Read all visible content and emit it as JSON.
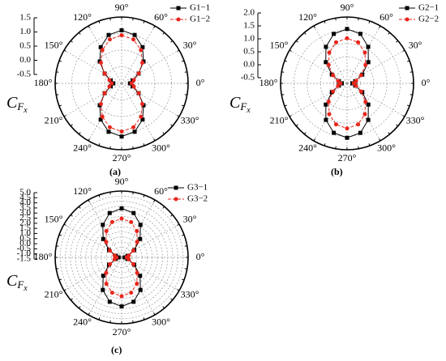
{
  "chart_data": [
    {
      "type": "polar",
      "panel": "(a)",
      "ylabel": [
        "C",
        "F",
        "x"
      ],
      "ylim": [
        -0.5,
        1.5
      ],
      "yticks": [
        -0.5,
        {
          "value": 0,
          "label": "0.0"
        },
        0.5,
        {
          "value": 1,
          "label": "1.0"
        },
        1.5
      ],
      "angle_ticks": [
        {
          "value": 0,
          "label": "0°"
        },
        {
          "value": 30,
          "label": "30°"
        },
        {
          "value": 60,
          "label": "60°"
        },
        {
          "value": 90,
          "label": "90°"
        },
        {
          "value": 120,
          "label": "120°"
        },
        {
          "value": 150,
          "label": "150°"
        },
        {
          "value": 180,
          "label": "180°"
        },
        {
          "value": 210,
          "label": "210°"
        },
        {
          "value": 240,
          "label": "240°"
        },
        {
          "value": 270,
          "label": "270°"
        },
        {
          "value": 300,
          "label": "300°"
        },
        {
          "value": 330,
          "label": "330°"
        }
      ],
      "x": [
        0,
        15,
        30,
        45,
        60,
        75,
        90,
        105,
        120,
        135,
        150,
        165,
        180,
        195,
        210,
        225,
        240,
        255,
        270,
        285,
        300,
        315,
        330,
        345
      ],
      "series": [
        {
          "name": "G1−1",
          "color": "#000000",
          "marker": "square",
          "dashed": false,
          "values": [
            -0.25,
            -0.16,
            0.09,
            0.43,
            0.76,
            1.01,
            1.1,
            1.01,
            0.76,
            0.43,
            0.09,
            -0.16,
            -0.25,
            -0.16,
            0.09,
            0.43,
            0.76,
            1.01,
            1.1,
            1.01,
            0.76,
            0.43,
            0.09,
            -0.16
          ]
        },
        {
          "name": "G1−2",
          "color": "#e8261c",
          "marker": "circle",
          "dashed": true,
          "values": [
            -0.2,
            -0.12,
            0.09,
            0.38,
            0.66,
            0.87,
            0.95,
            0.87,
            0.66,
            0.38,
            0.09,
            -0.12,
            -0.2,
            -0.12,
            0.09,
            0.38,
            0.66,
            0.87,
            0.95,
            0.87,
            0.66,
            0.38,
            0.09,
            -0.12
          ]
        }
      ]
    },
    {
      "type": "polar",
      "panel": "(b)",
      "ylabel": [
        "C",
        "F",
        "x"
      ],
      "ylim": [
        -0.5,
        2.0
      ],
      "yticks": [
        -0.5,
        {
          "value": 0,
          "label": "0.0"
        },
        0.5,
        {
          "value": 1,
          "label": "1.0"
        },
        1.5,
        {
          "value": 2,
          "label": "2.0"
        }
      ],
      "angle_ticks": [
        {
          "value": 0,
          "label": "0°"
        },
        {
          "value": 30,
          "label": "30°"
        },
        {
          "value": 60,
          "label": "60°"
        },
        {
          "value": 90,
          "label": "90°"
        },
        {
          "value": 120,
          "label": "120°"
        },
        {
          "value": 150,
          "label": "150°"
        },
        {
          "value": 180,
          "label": "180°"
        },
        {
          "value": 210,
          "label": "210°"
        },
        {
          "value": 240,
          "label": "240°"
        },
        {
          "value": 270,
          "label": "270°"
        },
        {
          "value": 300,
          "label": "300°"
        },
        {
          "value": 330,
          "label": "330°"
        }
      ],
      "x": [
        0,
        15,
        30,
        45,
        60,
        75,
        90,
        105,
        120,
        135,
        150,
        165,
        180,
        195,
        210,
        225,
        240,
        255,
        270,
        285,
        300,
        315,
        330,
        345
      ],
      "series": [
        {
          "name": "G2−1",
          "color": "#000000",
          "marker": "square",
          "dashed": false,
          "values": [
            -0.3,
            -0.18,
            0.16,
            0.63,
            1.09,
            1.43,
            1.55,
            1.43,
            1.09,
            0.63,
            0.16,
            -0.18,
            -0.3,
            -0.18,
            0.16,
            0.63,
            1.09,
            1.43,
            1.55,
            1.43,
            1.09,
            0.63,
            0.16,
            -0.18
          ]
        },
        {
          "name": "G2−2",
          "color": "#e8261c",
          "marker": "circle",
          "dashed": true,
          "values": [
            -0.25,
            -0.15,
            0.11,
            0.48,
            0.84,
            1.1,
            1.2,
            1.1,
            0.84,
            0.48,
            0.11,
            -0.15,
            -0.25,
            -0.15,
            0.11,
            0.48,
            0.84,
            1.1,
            1.2,
            1.1,
            0.84,
            0.48,
            0.11,
            -0.15
          ]
        }
      ]
    },
    {
      "type": "polar",
      "panel": "(c)",
      "ylabel": [
        "C",
        "F",
        "x"
      ],
      "ylim": [
        -1.5,
        5.0
      ],
      "yticks": [
        -1.5,
        {
          "value": -1,
          "label": "-1.0"
        },
        -0.5,
        {
          "value": 0,
          "label": "0.0"
        },
        0.5,
        {
          "value": 1,
          "label": "1.0"
        },
        1.5,
        {
          "value": 2,
          "label": "2.0"
        },
        2.5,
        {
          "value": 3,
          "label": "3.0"
        },
        3.5,
        {
          "value": 4,
          "label": "4.0"
        },
        4.5,
        {
          "value": 5,
          "label": "5.0"
        }
      ],
      "angle_ticks": [
        {
          "value": 0,
          "label": "0°"
        },
        {
          "value": 30,
          "label": "30°"
        },
        {
          "value": 60,
          "label": "60°"
        },
        {
          "value": 90,
          "label": "90°"
        },
        {
          "value": 120,
          "label": "120°"
        },
        {
          "value": 150,
          "label": "150°"
        },
        {
          "value": 180,
          "label": "180°"
        },
        {
          "value": 210,
          "label": "210°"
        },
        {
          "value": 240,
          "label": "240°"
        },
        {
          "value": 270,
          "label": "270°"
        },
        {
          "value": 300,
          "label": "300°"
        },
        {
          "value": 330,
          "label": "330°"
        }
      ],
      "x": [
        0,
        15,
        30,
        45,
        60,
        75,
        90,
        105,
        120,
        135,
        150,
        165,
        180,
        195,
        210,
        225,
        240,
        255,
        270,
        285,
        300,
        315,
        330,
        345
      ],
      "series": [
        {
          "name": "G3−1",
          "color": "#000000",
          "marker": "square",
          "dashed": false,
          "values": [
            -1.2,
            -0.9,
            -0.08,
            1.05,
            2.18,
            3.0,
            3.3,
            3.0,
            2.18,
            1.05,
            -0.08,
            -0.9,
            -1.2,
            -0.9,
            -0.08,
            1.05,
            2.18,
            3.0,
            3.3,
            3.0,
            2.18,
            1.05,
            -0.08,
            -0.9
          ]
        },
        {
          "name": "G3−2",
          "color": "#e8261c",
          "marker": "circle",
          "dashed": true,
          "values": [
            -1.0,
            -0.78,
            -0.18,
            0.65,
            1.48,
            2.08,
            2.3,
            2.08,
            1.48,
            0.65,
            -0.18,
            -0.78,
            -1.0,
            -0.78,
            -0.18,
            0.65,
            1.48,
            2.08,
            2.3,
            2.08,
            1.48,
            0.65,
            -0.18,
            -0.78
          ]
        }
      ]
    }
  ]
}
